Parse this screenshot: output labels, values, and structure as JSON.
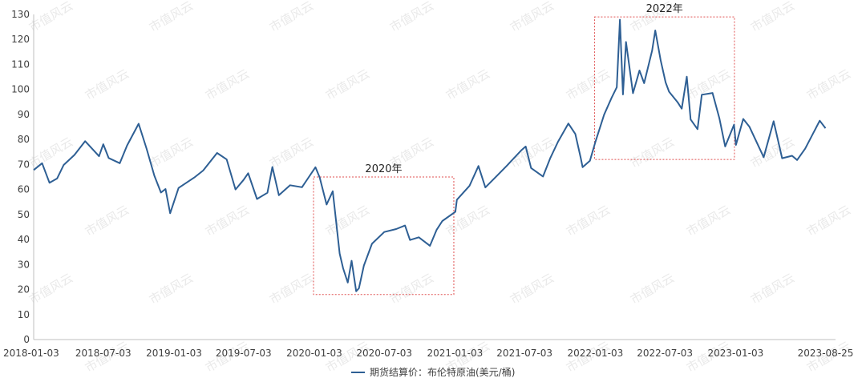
{
  "chart_data": {
    "type": "line",
    "title": "",
    "xlabel": "",
    "ylabel": "",
    "ylim": [
      0,
      130
    ],
    "yticks": [
      0,
      10,
      20,
      30,
      40,
      50,
      60,
      70,
      80,
      90,
      100,
      110,
      120,
      130
    ],
    "xlim": [
      "2018-01-03",
      "2023-09-20"
    ],
    "xtick_labels": [
      "2018-01-03",
      "2018-07-03",
      "2019-01-03",
      "2019-07-03",
      "2020-01-03",
      "2020-07-03",
      "2021-01-03",
      "2021-07-03",
      "2022-01-03",
      "2022-07-03",
      "2023-01-03",
      "2023-08-25"
    ],
    "grid": false,
    "legend_position": "bottom",
    "series": [
      {
        "name": "期货结算价：布伦特原油(美元/桶)",
        "color": "#2e5f94",
        "points": [
          [
            "2018-01-03",
            67.8
          ],
          [
            "2018-01-25",
            70.5
          ],
          [
            "2018-02-13",
            62.7
          ],
          [
            "2018-03-05",
            64.4
          ],
          [
            "2018-03-22",
            69.8
          ],
          [
            "2018-04-19",
            73.8
          ],
          [
            "2018-05-17",
            79.3
          ],
          [
            "2018-06-01",
            76.8
          ],
          [
            "2018-06-22",
            73.3
          ],
          [
            "2018-07-03",
            78.1
          ],
          [
            "2018-07-17",
            72.6
          ],
          [
            "2018-08-15",
            70.5
          ],
          [
            "2018-09-03",
            77.6
          ],
          [
            "2018-10-03",
            86.3
          ],
          [
            "2018-10-24",
            76.2
          ],
          [
            "2018-11-13",
            65.5
          ],
          [
            "2018-11-30",
            58.8
          ],
          [
            "2018-12-12",
            60.2
          ],
          [
            "2018-12-24",
            50.5
          ],
          [
            "2019-01-15",
            60.6
          ],
          [
            "2019-02-25",
            64.8
          ],
          [
            "2019-03-20",
            67.6
          ],
          [
            "2019-04-25",
            74.6
          ],
          [
            "2019-05-20",
            72.0
          ],
          [
            "2019-06-12",
            60.0
          ],
          [
            "2019-07-03",
            63.8
          ],
          [
            "2019-07-15",
            66.5
          ],
          [
            "2019-08-07",
            56.2
          ],
          [
            "2019-09-03",
            58.7
          ],
          [
            "2019-09-16",
            69.0
          ],
          [
            "2019-10-03",
            57.7
          ],
          [
            "2019-11-01",
            61.7
          ],
          [
            "2019-12-02",
            60.9
          ],
          [
            "2020-01-06",
            68.9
          ],
          [
            "2020-01-17",
            64.8
          ],
          [
            "2020-02-04",
            54.0
          ],
          [
            "2020-02-20",
            59.3
          ],
          [
            "2020-03-09",
            34.4
          ],
          [
            "2020-03-18",
            28.5
          ],
          [
            "2020-03-30",
            22.8
          ],
          [
            "2020-04-09",
            31.5
          ],
          [
            "2020-04-21",
            19.3
          ],
          [
            "2020-04-28",
            20.5
          ],
          [
            "2020-05-11",
            29.6
          ],
          [
            "2020-06-01",
            38.3
          ],
          [
            "2020-07-03",
            43.0
          ],
          [
            "2020-08-03",
            44.2
          ],
          [
            "2020-08-26",
            45.6
          ],
          [
            "2020-09-08",
            39.8
          ],
          [
            "2020-10-01",
            40.9
          ],
          [
            "2020-10-30",
            37.5
          ],
          [
            "2020-11-16",
            43.8
          ],
          [
            "2020-12-01",
            47.4
          ],
          [
            "2021-01-04",
            51.1
          ],
          [
            "2021-01-08",
            55.9
          ],
          [
            "2021-02-10",
            61.5
          ],
          [
            "2021-03-05",
            69.4
          ],
          [
            "2021-03-23",
            60.8
          ],
          [
            "2021-04-21",
            65.3
          ],
          [
            "2021-05-18",
            69.5
          ],
          [
            "2021-06-24",
            75.6
          ],
          [
            "2021-07-06",
            77.2
          ],
          [
            "2021-07-20",
            68.6
          ],
          [
            "2021-08-20",
            65.2
          ],
          [
            "2021-09-08",
            72.6
          ],
          [
            "2021-09-28",
            79.1
          ],
          [
            "2021-10-25",
            86.4
          ],
          [
            "2021-11-12",
            82.2
          ],
          [
            "2021-11-26",
            72.7
          ],
          [
            "2021-12-01",
            68.9
          ],
          [
            "2021-12-20",
            71.5
          ],
          [
            "2022-01-03",
            78.9
          ],
          [
            "2022-01-26",
            89.9
          ],
          [
            "2022-02-14",
            96.5
          ],
          [
            "2022-02-28",
            100.9
          ],
          [
            "2022-03-08",
            127.9
          ],
          [
            "2022-03-16",
            98.0
          ],
          [
            "2022-03-24",
            119.0
          ],
          [
            "2022-04-11",
            98.5
          ],
          [
            "2022-04-28",
            107.6
          ],
          [
            "2022-05-10",
            102.5
          ],
          [
            "2022-05-31",
            115.6
          ],
          [
            "2022-06-08",
            123.6
          ],
          [
            "2022-06-22",
            111.7
          ],
          [
            "2022-07-05",
            102.8
          ],
          [
            "2022-07-14",
            99.1
          ],
          [
            "2022-08-05",
            94.9
          ],
          [
            "2022-08-16",
            92.3
          ],
          [
            "2022-08-29",
            105.1
          ],
          [
            "2022-09-08",
            88.0
          ],
          [
            "2022-09-26",
            84.1
          ],
          [
            "2022-10-07",
            97.9
          ],
          [
            "2022-11-04",
            98.6
          ],
          [
            "2022-11-22",
            88.4
          ],
          [
            "2022-12-07",
            77.2
          ],
          [
            "2022-12-30",
            85.9
          ],
          [
            "2023-01-04",
            77.8
          ],
          [
            "2023-01-23",
            88.2
          ],
          [
            "2023-02-08",
            85.1
          ],
          [
            "2023-03-17",
            72.9
          ],
          [
            "2023-04-12",
            87.3
          ],
          [
            "2023-05-04",
            72.5
          ],
          [
            "2023-05-30",
            73.5
          ],
          [
            "2023-06-12",
            71.8
          ],
          [
            "2023-07-03",
            76.3
          ],
          [
            "2023-08-10",
            87.5
          ],
          [
            "2023-08-25",
            84.5
          ]
        ]
      }
    ],
    "annotations": [
      {
        "label": "2020年",
        "x_range": [
          "2020-01-01",
          "2020-12-31"
        ],
        "y_range": [
          18,
          65
        ]
      },
      {
        "label": "2022年",
        "x_range": [
          "2022-01-01",
          "2022-12-31"
        ],
        "y_range": [
          72,
          129
        ]
      }
    ],
    "watermark": "市值风云"
  }
}
